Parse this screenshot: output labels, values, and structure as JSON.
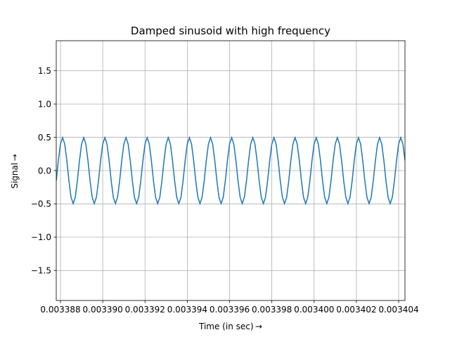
{
  "chart_data": {
    "type": "line",
    "title": "Damped sinusoid with high frequency",
    "xlabel": "Time (in sec) →",
    "ylabel": "Signal →",
    "xlim": [
      0.0033878,
      0.0034043
    ],
    "ylim": [
      -1.95,
      1.95
    ],
    "grid": true,
    "x_ticks": [
      0.003388,
      0.00339,
      0.003392,
      0.003394,
      0.003396,
      0.003398,
      0.0034,
      0.003402,
      0.003404
    ],
    "x_tick_labels": [
      "0.003388",
      "0.003390",
      "0.003392",
      "0.003394",
      "0.003396",
      "0.003398",
      "0.003400",
      "0.003402",
      "0.003404"
    ],
    "y_ticks": [
      -1.5,
      -1.0,
      -0.5,
      0.0,
      0.5,
      1.0,
      1.5
    ],
    "y_tick_labels": [
      "−1.5",
      "−1.0",
      "−0.5",
      "0.0",
      "0.5",
      "1.0",
      "1.5"
    ],
    "series": [
      {
        "color": "#1f77b4",
        "sampling": {
          "x_start": 0.0033878,
          "x_step": 1e-07,
          "count": 166
        },
        "model": {
          "amplitude": 0.495,
          "period": 1e-06,
          "peak_at": 0.0033881
        }
      }
    ]
  }
}
